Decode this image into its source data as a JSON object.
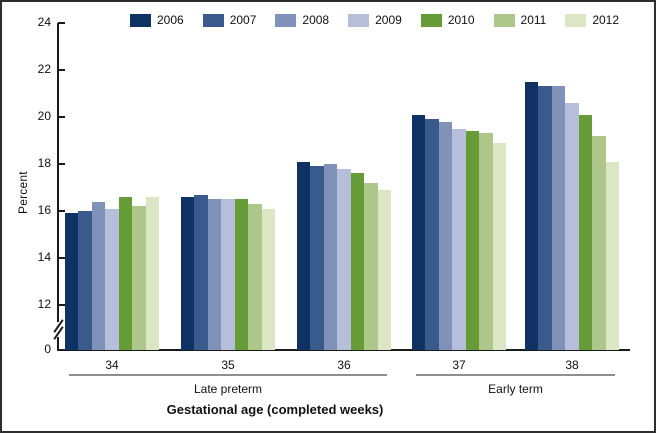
{
  "chart_data": {
    "type": "bar",
    "title": "",
    "xlabel": "Gestational age (completed weeks)",
    "ylabel": "Percent",
    "categories": [
      "34",
      "35",
      "36",
      "37",
      "38"
    ],
    "category_groups": [
      {
        "label": "Late preterm",
        "categories": [
          "34",
          "35",
          "36"
        ]
      },
      {
        "label": "Early term",
        "categories": [
          "37",
          "38"
        ]
      }
    ],
    "yticks": [
      0,
      12,
      14,
      16,
      18,
      20,
      22,
      24
    ],
    "ylim": [
      0,
      24
    ],
    "axis_break_between": [
      0,
      12
    ],
    "grid": "off",
    "legend_position": "top",
    "series": [
      {
        "name": "2006",
        "color": "#0d3263",
        "values": [
          15.9,
          16.6,
          18.1,
          20.1,
          21.5
        ]
      },
      {
        "name": "2007",
        "color": "#3a5a8c",
        "values": [
          16.0,
          16.7,
          17.9,
          19.9,
          21.3
        ]
      },
      {
        "name": "2008",
        "color": "#8192ba",
        "values": [
          16.4,
          16.5,
          18.0,
          19.8,
          21.3
        ]
      },
      {
        "name": "2009",
        "color": "#b6bfda",
        "values": [
          16.1,
          16.5,
          17.8,
          19.5,
          20.6
        ]
      },
      {
        "name": "2010",
        "color": "#669c38",
        "values": [
          16.6,
          16.5,
          17.6,
          19.4,
          20.1
        ]
      },
      {
        "name": "2011",
        "color": "#adc689",
        "values": [
          16.2,
          16.3,
          17.2,
          19.3,
          19.2
        ]
      },
      {
        "name": "2012",
        "color": "#dbe6c4",
        "values": [
          16.6,
          16.1,
          16.9,
          18.9,
          18.1
        ]
      }
    ]
  }
}
